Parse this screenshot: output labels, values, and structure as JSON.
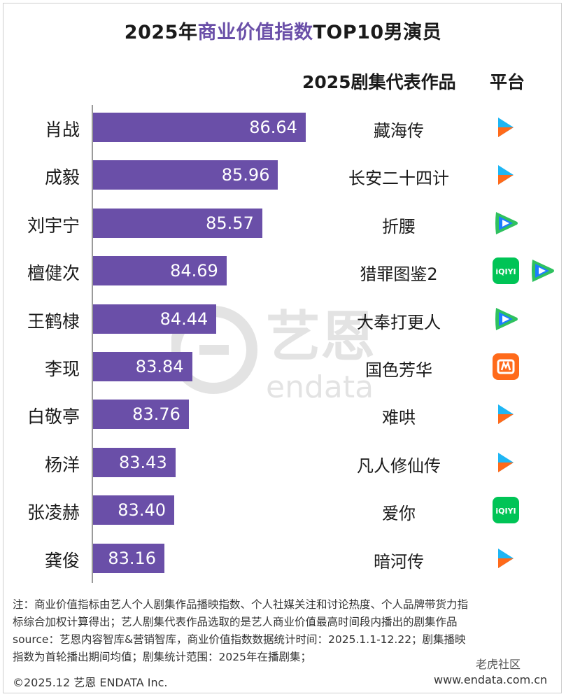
{
  "title_parts": [
    "2025年",
    "商业价值指数",
    "TOP10",
    "男演员"
  ],
  "headers": {
    "works": "2025剧集代表作品",
    "platform": "平台"
  },
  "chart_data": {
    "type": "bar",
    "orientation": "horizontal",
    "title": "2025年商业价值指数TOP10男演员",
    "categories": [
      "肖战",
      "成毅",
      "刘宇宁",
      "檀健次",
      "王鹤棣",
      "李现",
      "白敬亭",
      "杨洋",
      "张凌赫",
      "龚俊"
    ],
    "values": [
      86.64,
      85.96,
      85.57,
      84.69,
      84.44,
      83.84,
      83.76,
      83.43,
      83.4,
      83.16
    ],
    "value_labels": [
      "86.64",
      "85.96",
      "85.57",
      "84.69",
      "84.44",
      "83.84",
      "83.76",
      "83.43",
      "83.40",
      "83.16"
    ],
    "bar_color": "#6a4fa8"
  },
  "works": [
    "藏海传",
    "长安二十四计",
    "折腰",
    "猎罪图鉴2",
    "大奉打更人",
    "国色芳华",
    "难哄",
    "凡人修仙传",
    "爱你",
    "暗河传"
  ],
  "platforms": [
    [
      "youku"
    ],
    [
      "youku"
    ],
    [
      "tencent"
    ],
    [
      "iqiyi",
      "tencent"
    ],
    [
      "tencent"
    ],
    [
      "mango"
    ],
    [
      "youku"
    ],
    [
      "youku"
    ],
    [
      "iqiyi"
    ],
    [
      "youku"
    ]
  ],
  "platform_icons": {
    "youku": "youku-icon",
    "tencent": "tencent-video-icon",
    "iqiyi": "iqiyi-icon",
    "mango": "mango-tv-icon"
  },
  "iqiyi_label": "iQIYI",
  "watermark": {
    "cn": "艺恩",
    "en": "endata"
  },
  "note_lines": [
    "注：商业价值指标由艺人个人剧集作品播映指数、个人社媒关注和讨论热度、个人品牌带货力指",
    "标综合加权计算得出；艺人剧集代表作品选取的是艺人商业价值最高时间段内播出的剧集作品",
    "source：艺恩内容智库&营销智库，商业价值指数数据统计时间：2025.1.1-12.22；剧集播映",
    "指数为首轮播出期间均值；剧集统计范围：2025年在播剧集；"
  ],
  "footer": {
    "left": "©2025.12  艺恩 ENDATA Inc.",
    "right": "www.endata.com.cn"
  },
  "overlay_tag": "老虎社区",
  "colors": {
    "accent": "#6a4fa8",
    "youku_blue": "#1eb6f4",
    "youku_orange": "#ff6a1a",
    "tencent_green": "#2fc15f",
    "tencent_blue": "#1c7cff",
    "iqiyi_green": "#00c456",
    "mango_orange": "#ff6a1a"
  }
}
